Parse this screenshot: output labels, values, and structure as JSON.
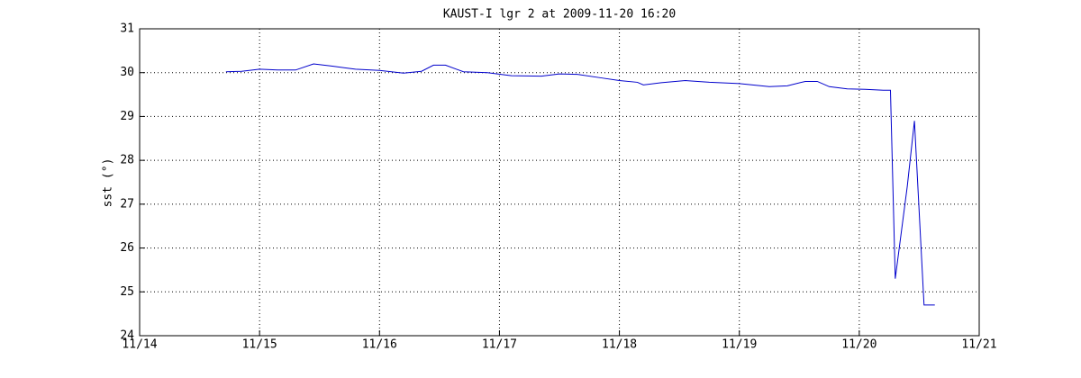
{
  "chart_data": {
    "type": "line",
    "title": "KAUST-I lgr 2 at 2009-11-20 16:20",
    "y_label": "sst (°)",
    "x": [
      14.72,
      14.85,
      15.0,
      15.15,
      15.3,
      15.45,
      15.6,
      15.8,
      16.0,
      16.2,
      16.35,
      16.45,
      16.55,
      16.7,
      16.9,
      17.1,
      17.35,
      17.5,
      17.65,
      17.85,
      18.0,
      18.15,
      18.2,
      18.35,
      18.55,
      18.75,
      19.0,
      19.25,
      19.4,
      19.55,
      19.65,
      19.75,
      19.9,
      20.05,
      20.2,
      20.26,
      20.3,
      20.4,
      20.46,
      20.54,
      20.63
    ],
    "series": [
      {
        "name": "sst",
        "color": "#0000cc",
        "values": [
          30.02,
          30.03,
          30.08,
          30.06,
          30.06,
          30.2,
          30.15,
          30.08,
          30.05,
          29.99,
          30.03,
          30.17,
          30.17,
          30.02,
          30.0,
          29.93,
          29.92,
          29.97,
          29.96,
          29.88,
          29.82,
          29.78,
          29.72,
          29.77,
          29.82,
          29.78,
          29.75,
          29.68,
          29.7,
          29.8,
          29.8,
          29.68,
          29.63,
          29.62,
          29.6,
          29.6,
          25.3,
          27.4,
          28.9,
          24.7,
          24.7
        ]
      }
    ],
    "xlim": [
      14,
      21
    ],
    "xticks": [
      {
        "value": 14,
        "label": "11/14"
      },
      {
        "value": 15,
        "label": "11/15"
      },
      {
        "value": 16,
        "label": "11/16"
      },
      {
        "value": 17,
        "label": "11/17"
      },
      {
        "value": 18,
        "label": "11/18"
      },
      {
        "value": 19,
        "label": "11/19"
      },
      {
        "value": 20,
        "label": "11/20"
      },
      {
        "value": 21,
        "label": "11/21"
      }
    ],
    "ylim": [
      24,
      31
    ],
    "yticks": [
      24,
      25,
      26,
      27,
      28,
      29,
      30,
      31
    ],
    "grid": true
  }
}
